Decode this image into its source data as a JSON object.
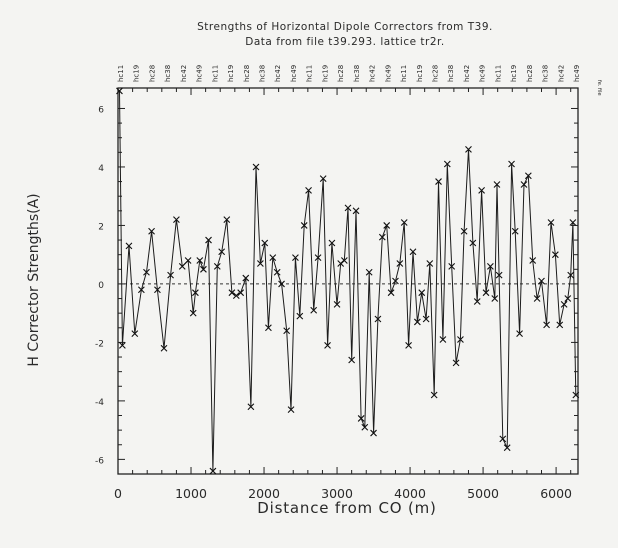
{
  "chart_data": {
    "type": "line",
    "title": "Strengths of Horizontal Dipole Correctors from T39.",
    "subtitle": "Data from file t39.293. lattice tr2r.",
    "xlabel": "Distance from CO (m)",
    "ylabel": "H Corrector Strengths(A)",
    "xlim": [
      0,
      6300
    ],
    "ylim": [
      -6.5,
      6.7
    ],
    "x_ticks": [
      0,
      1000,
      2000,
      3000,
      4000,
      5000,
      6000
    ],
    "y_ticks": [
      -6,
      -4,
      -2,
      0,
      2,
      4,
      6
    ],
    "zero_line": "dashed",
    "marker": "x",
    "top_labels": [
      "hc11",
      "hc19",
      "hc28",
      "hc38",
      "hc42",
      "hc49",
      "hc11",
      "hc19",
      "hc28",
      "hc38",
      "hc42",
      "hc49",
      "hc11",
      "hc19",
      "hc28",
      "hc38",
      "hc42",
      "hc49",
      "hc11",
      "hc19",
      "hc28",
      "hc38",
      "hc42",
      "hc49",
      "hc11",
      "hc19",
      "hc28",
      "hc38",
      "hc42",
      "hc49"
    ],
    "side_note": "fe. file",
    "series": [
      {
        "x": [
          20,
          60,
          150,
          230,
          320,
          390,
          460,
          540,
          630,
          720,
          800,
          880,
          960,
          1030,
          1060,
          1120,
          1170,
          1240,
          1300,
          1360,
          1420,
          1490,
          1560,
          1620,
          1680,
          1750,
          1820,
          1890,
          1950,
          2010,
          2060,
          2120,
          2180,
          2240,
          2310,
          2370,
          2430,
          2490,
          2550,
          2610,
          2680,
          2740,
          2810,
          2870,
          2930,
          3000,
          3050,
          3100,
          3150,
          3200,
          3260,
          3330,
          3380,
          3440,
          3500,
          3560,
          3620,
          3680,
          3740,
          3800,
          3860,
          3920,
          3980,
          4040,
          4100,
          4160,
          4220,
          4270,
          4330,
          4390,
          4450,
          4510,
          4570,
          4630,
          4690,
          4740,
          4800,
          4860,
          4920,
          4980,
          5040,
          5100,
          5160,
          5190,
          5220,
          5270,
          5330,
          5390,
          5440,
          5500,
          5560,
          5620,
          5680,
          5740,
          5800,
          5870,
          5930,
          5990,
          6050,
          6110,
          6160,
          6200,
          6230,
          6270
        ],
        "y": [
          6.6,
          -2.1,
          1.3,
          -1.7,
          -0.2,
          0.4,
          1.8,
          -0.2,
          -2.2,
          0.3,
          2.2,
          0.6,
          0.8,
          -1.0,
          -0.3,
          0.8,
          0.5,
          1.5,
          -6.4,
          0.6,
          1.1,
          2.2,
          -0.3,
          -0.4,
          -0.3,
          0.2,
          -4.2,
          4.0,
          0.7,
          1.4,
          -1.5,
          0.9,
          0.4,
          0.0,
          -1.6,
          -4.3,
          0.9,
          -1.1,
          2.0,
          3.2,
          -0.9,
          0.9,
          3.6,
          -2.1,
          1.4,
          -0.7,
          0.7,
          0.8,
          2.6,
          -2.6,
          2.5,
          -4.6,
          -4.9,
          0.4,
          -5.1,
          -1.2,
          1.6,
          2.0,
          -0.3,
          0.1,
          0.7,
          2.1,
          -2.1,
          1.1,
          -1.3,
          -0.3,
          -1.2,
          0.7,
          -3.8,
          3.5,
          -1.9,
          4.1,
          0.6,
          -2.7,
          -1.9,
          1.8,
          4.6,
          1.4,
          -0.6,
          3.2,
          -0.3,
          0.6,
          -0.5,
          3.4,
          0.3,
          -5.3,
          -5.6,
          4.1,
          1.8,
          -1.7,
          3.4,
          3.7,
          0.8,
          -0.5,
          0.1,
          -1.4,
          2.1,
          1.0,
          -1.4,
          -0.7,
          -0.5,
          0.3,
          2.1,
          -3.8
        ]
      }
    ]
  }
}
